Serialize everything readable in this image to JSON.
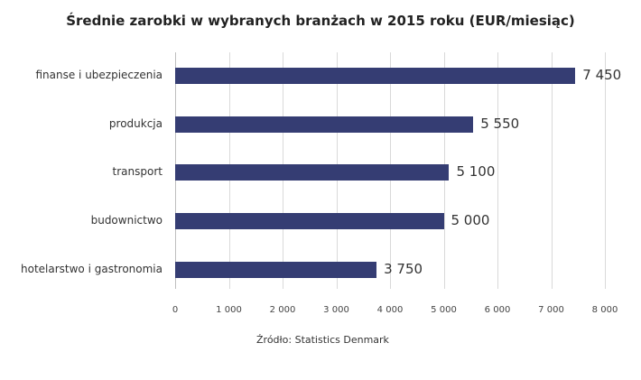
{
  "chart_data": {
    "type": "bar",
    "orientation": "horizontal",
    "title": "Średnie zarobki w wybranych branżach w 2015 roku (EUR/miesiąc)",
    "categories": [
      "finanse i ubezpieczenia",
      "produkcja",
      "transport",
      "budownictwo",
      "hotelarstwo i gastronomia"
    ],
    "values": [
      7450,
      5550,
      5100,
      5000,
      3750
    ],
    "value_labels": [
      "7 450",
      "5 550",
      "5 100",
      "5 000",
      "3 750"
    ],
    "xlabel": "",
    "ylabel": "",
    "xlim": [
      0,
      8000
    ],
    "x_ticks": [
      "0",
      "1 000",
      "2 000",
      "3 000",
      "4 000",
      "5 000",
      "6 000",
      "7 000",
      "8 000"
    ],
    "grid": true,
    "legend": null,
    "bar_color": "#353d73",
    "source": "Źródło: Statistics Denmark"
  }
}
